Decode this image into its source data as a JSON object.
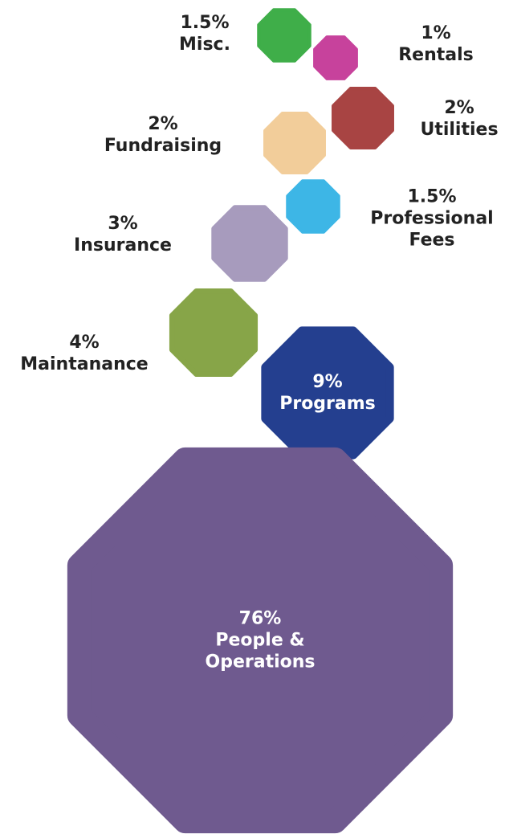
{
  "chart_data": {
    "type": "bubble",
    "categories": [
      "Misc.",
      "Rentals",
      "Utilities",
      "Fundraising",
      "Professional Fees",
      "Insurance",
      "Maintanance",
      "Programs",
      "People & Operations"
    ],
    "values": [
      1.5,
      1,
      2,
      2,
      1.5,
      3,
      4,
      9,
      76
    ],
    "value_labels": [
      "1.5%",
      "1%",
      "2%",
      "2%",
      "1.5%",
      "3%",
      "4%",
      "9%",
      "76%"
    ],
    "colors": [
      "#3fae49",
      "#c7429c",
      "#a84443",
      "#f2cd9a",
      "#3db6e6",
      "#a79bbd",
      "#87a548",
      "#243f8f",
      "#6f5a8f"
    ]
  }
}
